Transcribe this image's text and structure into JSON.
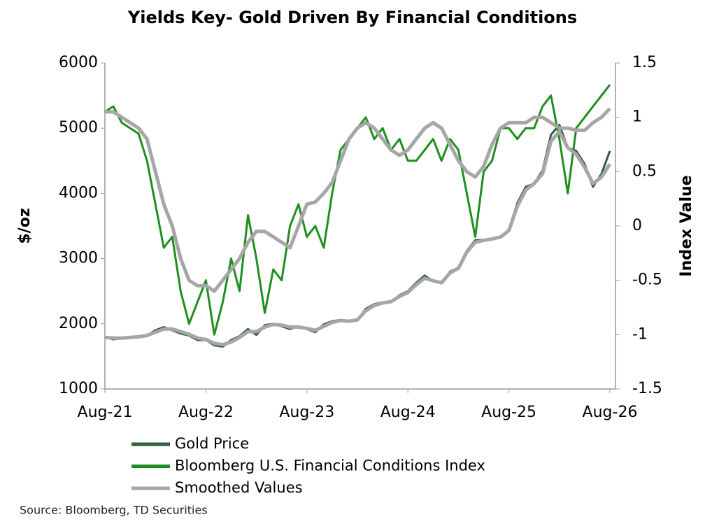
{
  "chart_data": {
    "type": "line",
    "title": "Yields Key- Gold Driven By Financial Conditions",
    "ylabel": "$/oz",
    "y2label": "Index Value",
    "source": "Source: Bloomberg, TD Securities",
    "x": [
      "2021-08",
      "2021-09",
      "2021-10",
      "2021-11",
      "2021-12",
      "2022-01",
      "2022-02",
      "2022-03",
      "2022-04",
      "2022-05",
      "2022-06",
      "2022-07",
      "2022-08",
      "2022-09",
      "2022-10",
      "2022-11",
      "2022-12",
      "2023-01",
      "2023-02",
      "2023-03",
      "2023-04",
      "2023-05",
      "2023-06",
      "2023-07",
      "2023-08",
      "2023-09",
      "2023-10",
      "2023-11",
      "2023-12",
      "2024-01",
      "2024-02",
      "2024-03",
      "2024-04",
      "2024-05",
      "2024-06",
      "2024-07",
      "2024-08",
      "2024-09",
      "2024-10",
      "2024-11",
      "2024-12",
      "2025-01",
      "2025-02",
      "2025-03",
      "2025-04",
      "2025-05",
      "2025-06",
      "2025-07",
      "2025-08",
      "2025-09",
      "2025-10",
      "2025-11",
      "2025-12",
      "2026-01",
      "2026-02",
      "2026-03",
      "2026-04",
      "2026-05",
      "2026-06",
      "2026-07",
      "2026-08"
    ],
    "xticks": [
      {
        "value": "2021-08",
        "label": "Aug-21"
      },
      {
        "value": "2022-08",
        "label": "Aug-22"
      },
      {
        "value": "2023-08",
        "label": "Aug-23"
      },
      {
        "value": "2024-08",
        "label": "Aug-24"
      },
      {
        "value": "2025-08",
        "label": "Aug-25"
      },
      {
        "value": "2026-08",
        "label": "Aug-26"
      }
    ],
    "ylim": [
      1000,
      6000
    ],
    "yticks": [
      1000,
      2000,
      3000,
      4000,
      5000,
      6000
    ],
    "y2lim": [
      -1.5,
      1.5
    ],
    "y2ticks": [
      -1.5,
      -1,
      -0.5,
      0,
      0.5,
      1,
      1.5
    ],
    "series": [
      {
        "name": "Gold Price",
        "color": "#2f5f3c",
        "axis": "y",
        "values": [
          1800,
          1760,
          1780,
          1800,
          1800,
          1820,
          1900,
          1950,
          1900,
          1850,
          1820,
          1750,
          1750,
          1670,
          1650,
          1750,
          1810,
          1920,
          1830,
          1980,
          2000,
          1960,
          1920,
          1960,
          1920,
          1870,
          1990,
          2040,
          2060,
          2040,
          2050,
          2230,
          2300,
          2330,
          2330,
          2440,
          2500,
          2630,
          2740,
          2650,
          2620,
          2800,
          2860,
          3120,
          3280,
          3290,
          3300,
          3320,
          3450,
          3850,
          4100,
          4150,
          4350,
          4900,
          5050,
          4700,
          4650,
          4450,
          4100,
          4300,
          4650
        ]
      },
      {
        "name": "Bloomberg U.S. Financial Conditions Index",
        "color": "#1e8f1e",
        "axis": "y2",
        "values": [
          1.05,
          1.1,
          0.95,
          0.9,
          0.85,
          0.6,
          0.2,
          -0.2,
          -0.1,
          -0.6,
          -0.9,
          -0.7,
          -0.5,
          -1.0,
          -0.7,
          -0.3,
          -0.6,
          0.1,
          -0.3,
          -0.8,
          -0.4,
          -0.5,
          0.0,
          0.2,
          -0.1,
          0.0,
          -0.2,
          0.3,
          0.7,
          0.8,
          0.9,
          1.0,
          0.8,
          0.9,
          0.7,
          0.8,
          0.6,
          0.6,
          0.7,
          0.8,
          0.6,
          0.8,
          0.7,
          0.3,
          -0.1,
          0.5,
          0.6,
          0.9,
          0.9,
          0.8,
          0.9,
          0.9,
          1.1,
          1.2,
          0.8,
          0.3,
          0.9,
          1.0,
          1.1,
          1.2,
          1.3
        ]
      },
      {
        "name": "Smoothed Values",
        "color": "#a6a6a6",
        "axis": "y2",
        "values": [
          1.05,
          1.05,
          1.0,
          0.95,
          0.9,
          0.8,
          0.5,
          0.2,
          0.0,
          -0.3,
          -0.5,
          -0.55,
          -0.55,
          -0.6,
          -0.5,
          -0.4,
          -0.3,
          -0.15,
          -0.05,
          -0.05,
          -0.1,
          -0.15,
          -0.2,
          0.0,
          0.2,
          0.22,
          0.3,
          0.4,
          0.6,
          0.8,
          0.9,
          0.95,
          0.9,
          0.8,
          0.7,
          0.65,
          0.7,
          0.8,
          0.9,
          0.95,
          0.9,
          0.75,
          0.6,
          0.5,
          0.45,
          0.55,
          0.75,
          0.9,
          0.95,
          0.95,
          0.95,
          1.0,
          1.0,
          0.95,
          0.9,
          0.9,
          0.88,
          0.88,
          0.95,
          1.0,
          1.08
        ]
      },
      {
        "color": "#a6a6a6",
        "axis": "y",
        "values": [
          1790,
          1780,
          1780,
          1790,
          1800,
          1820,
          1870,
          1920,
          1920,
          1880,
          1840,
          1780,
          1760,
          1700,
          1680,
          1720,
          1790,
          1880,
          1880,
          1950,
          1990,
          1980,
          1950,
          1950,
          1930,
          1900,
          1960,
          2020,
          2050,
          2040,
          2060,
          2200,
          2280,
          2320,
          2340,
          2420,
          2480,
          2600,
          2700,
          2660,
          2630,
          2780,
          2850,
          3100,
          3250,
          3280,
          3300,
          3330,
          3430,
          3800,
          4050,
          4150,
          4300,
          4800,
          4950,
          4700,
          4600,
          4400,
          4150,
          4250,
          4450
        ]
      }
    ]
  }
}
